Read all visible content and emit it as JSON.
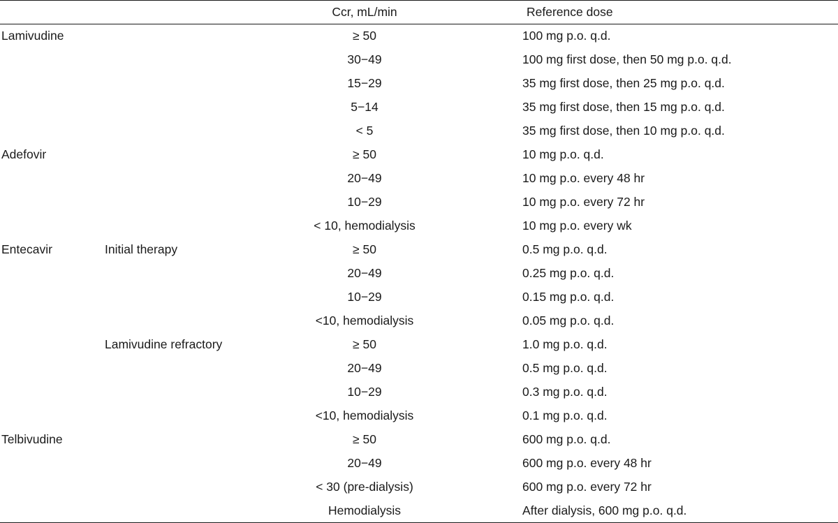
{
  "header": {
    "col_drug": "",
    "col_therapy": "",
    "col_ccr": "Ccr, mL/min",
    "col_dose": "Reference dose"
  },
  "rows": [
    {
      "drug": "Lamivudine",
      "therapy": "",
      "ccr": "≥ 50",
      "dose": "100 mg p.o. q.d."
    },
    {
      "drug": "",
      "therapy": "",
      "ccr": "30−49",
      "dose": "100 mg first dose, then 50 mg p.o. q.d."
    },
    {
      "drug": "",
      "therapy": "",
      "ccr": "15−29",
      "dose": "35 mg first dose, then 25 mg p.o. q.d."
    },
    {
      "drug": "",
      "therapy": "",
      "ccr": "5−14",
      "dose": "35 mg first dose, then 15 mg  p.o. q.d."
    },
    {
      "drug": "",
      "therapy": "",
      "ccr": "< 5",
      "dose": "35 mg first dose, then 10 mg p.o. q.d."
    },
    {
      "drug": "Adefovir",
      "therapy": "",
      "ccr": "≥ 50",
      "dose": "10 mg p.o. q.d."
    },
    {
      "drug": "",
      "therapy": "",
      "ccr": "20−49",
      "dose": "10 mg p.o. every 48 hr"
    },
    {
      "drug": "",
      "therapy": "",
      "ccr": "10−29",
      "dose": "10 mg p.o. every 72 hr"
    },
    {
      "drug": "",
      "therapy": "",
      "ccr": "< 10, hemodialysis",
      "dose": "10 mg p.o. every wk"
    },
    {
      "drug": "Entecavir",
      "therapy": "Initial therapy",
      "ccr": "≥ 50",
      "dose": "0.5 mg p.o. q.d."
    },
    {
      "drug": "",
      "therapy": "",
      "ccr": "20−49",
      "dose": "0.25 mg p.o. q.d."
    },
    {
      "drug": "",
      "therapy": "",
      "ccr": "10−29",
      "dose": "0.15 mg p.o. q.d."
    },
    {
      "drug": "",
      "therapy": "",
      "ccr": "<10, hemodialysis",
      "dose": "0.05 mg p.o. q.d."
    },
    {
      "drug": "",
      "therapy": "Lamivudine refractory",
      "ccr": "≥ 50",
      "dose": "1.0 mg p.o. q.d."
    },
    {
      "drug": "",
      "therapy": "",
      "ccr": "20−49",
      "dose": "0.5 mg p.o. q.d."
    },
    {
      "drug": "",
      "therapy": "",
      "ccr": "10−29",
      "dose": "0.3 mg p.o. q.d."
    },
    {
      "drug": "",
      "therapy": "",
      "ccr": "<10, hemodialysis",
      "dose": "0.1 mg p.o. q.d."
    },
    {
      "drug": "Telbivudine",
      "therapy": "",
      "ccr": "≥ 50",
      "dose": "600 mg p.o. q.d."
    },
    {
      "drug": "",
      "therapy": "",
      "ccr": "20−49",
      "dose": "600 mg p.o. every 48 hr"
    },
    {
      "drug": "",
      "therapy": "",
      "ccr": "< 30 (pre-dialysis)",
      "dose": "600 mg p.o. every 72 hr"
    },
    {
      "drug": "",
      "therapy": "",
      "ccr": "Hemodialysis",
      "dose": "After dialysis, 600 mg p.o. q.d."
    }
  ]
}
